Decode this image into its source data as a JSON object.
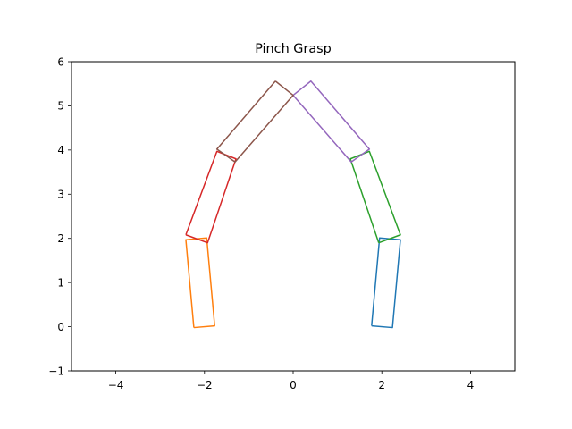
{
  "chart_data": {
    "type": "line",
    "title": "Pinch Grasp",
    "xlabel": "",
    "ylabel": "",
    "xlim": [
      -5,
      5
    ],
    "ylim": [
      -1,
      6
    ],
    "xticks": [
      -4,
      -2,
      0,
      2,
      4
    ],
    "xtick_labels": [
      "−4",
      "−2",
      "0",
      "2",
      "4"
    ],
    "yticks": [
      -1,
      0,
      1,
      2,
      3,
      4,
      5,
      6
    ],
    "ytick_labels": [
      "−1",
      "0",
      "1",
      "2",
      "3",
      "4",
      "5",
      "6"
    ],
    "grid": false,
    "legend": "none",
    "series": [
      {
        "color": "#1f77b4",
        "points": [
          [
            1.77,
            0.02
          ],
          [
            2.24,
            -0.02
          ],
          [
            2.42,
            1.97
          ],
          [
            1.95,
            2.01
          ],
          [
            1.77,
            0.02
          ]
        ]
      },
      {
        "color": "#ff7f0e",
        "points": [
          [
            -2.24,
            -0.02
          ],
          [
            -1.77,
            0.02
          ],
          [
            -1.95,
            2.01
          ],
          [
            -2.42,
            1.97
          ],
          [
            -2.24,
            -0.02
          ]
        ]
      },
      {
        "color": "#2ca02c",
        "points": [
          [
            1.93,
            1.9
          ],
          [
            2.42,
            2.08
          ],
          [
            1.72,
            3.97
          ],
          [
            1.29,
            3.8
          ],
          [
            1.93,
            1.9
          ]
        ]
      },
      {
        "color": "#d62728",
        "points": [
          [
            -2.42,
            2.08
          ],
          [
            -1.93,
            1.9
          ],
          [
            -1.29,
            3.8
          ],
          [
            -1.72,
            3.97
          ],
          [
            -2.42,
            2.08
          ]
        ]
      },
      {
        "color": "#9467bd",
        "points": [
          [
            0.0,
            5.24
          ],
          [
            0.4,
            5.56
          ],
          [
            1.72,
            4.02
          ],
          [
            1.31,
            3.73
          ],
          [
            0.0,
            5.24
          ]
        ]
      },
      {
        "color": "#8c564b",
        "points": [
          [
            -0.4,
            5.56
          ],
          [
            0.0,
            5.24
          ],
          [
            -1.31,
            3.73
          ],
          [
            -1.72,
            4.02
          ],
          [
            -0.4,
            5.56
          ]
        ]
      }
    ]
  }
}
